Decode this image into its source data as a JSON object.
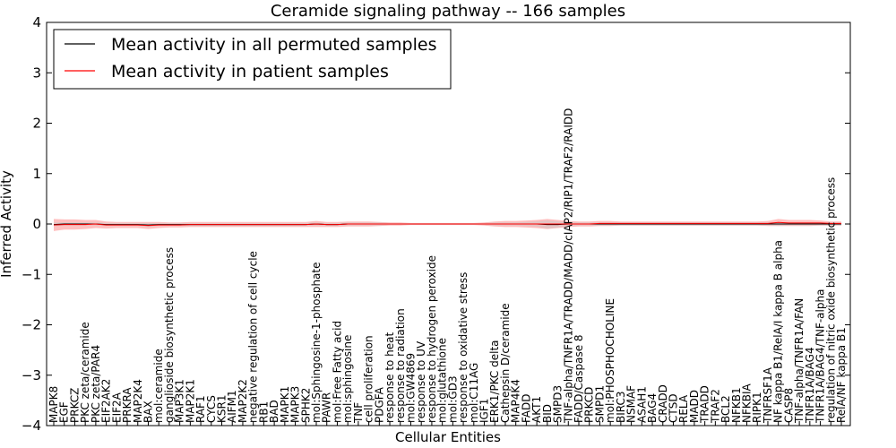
{
  "chart_data": {
    "type": "line",
    "title": "Ceramide signaling pathway -- 166 samples",
    "xlabel": "Cellular Entities",
    "ylabel": "Inferred Activity",
    "ylim": [
      -4,
      4
    ],
    "yticks": [
      -4,
      -3,
      -2,
      -1,
      0,
      1,
      2,
      3,
      4
    ],
    "ytick_labels": [
      "−4",
      "−3",
      "−2",
      "−1",
      "0",
      "1",
      "2",
      "3",
      "4"
    ],
    "grid": false,
    "legend_position": "top-left",
    "categories": [
      "MAPK8",
      "EGF",
      "PRKCZ",
      "PKC zeta/ceramide",
      "PKC zeta/PAR4",
      "EIF2AK2",
      "EIF2A",
      "PRKRA",
      "MAP2K4",
      "BAX",
      "mol:ceramide",
      "ganglioside biosynthetic process",
      "MAP3K1",
      "MAP2K1",
      "RAF1",
      "CYCS",
      "KSR1",
      "AIFM1",
      "MAP2K2",
      "negative regulation of cell cycle",
      "RB1",
      "BAD",
      "MAPK1",
      "MAPK3",
      "SPHK2",
      "mol:Sphingosine-1-phosphate",
      "PAWR",
      "mol:Free Fatty acid",
      "mol:sphingosine",
      "TNF",
      "cell proliferation",
      "PDGFA",
      "response to heat",
      "response to radiation",
      "mol:GW4869",
      "response to UV",
      "response to hydrogen peroxide",
      "mol:glutathione",
      "mol:GD3",
      "response to oxidative stress",
      "mol:C11AG",
      "IGF1",
      "ERK1/PKC delta",
      "Cathepsin D/ceramide",
      "MAP4K4",
      "FADD",
      "AKT1",
      "BID",
      "SMPD3",
      "TNF-alpha/TNFR1A/TRADD/MADD/cIAP2/RIP1/TRAF2/RAIDD",
      "FADD/Caspase 8",
      "PRKCD",
      "SMPD1",
      "mol:PHOSPHOCHOLINE",
      "BIRC3",
      "NSMAF",
      "ASAH1",
      "BAG4",
      "CRADD",
      "CTSD",
      "RELA",
      "MADD",
      "TRADD",
      "TRAF2",
      "BCL2",
      "NFKB1",
      "NFKBIA",
      "RIPK1",
      "TNFRSF1A",
      "NF kappa B1/RelA/I kappa B alpha",
      "CASP8",
      "TNF-alpha/TNFR1A/FAN",
      "TNFR1A/BAG4",
      "TNFR1A/BAG4/TNF-alpha",
      "regulation of nitric oxide biosynthetic process",
      "RelA/NF kappa B1"
    ],
    "series": [
      {
        "name": "Mean activity in all permuted samples",
        "color": "#000000",
        "values": [
          -0.01,
          0.0,
          0.0,
          0.0,
          0.0,
          -0.01,
          -0.01,
          -0.01,
          -0.01,
          -0.02,
          -0.01,
          -0.01,
          -0.01,
          -0.01,
          -0.01,
          -0.01,
          -0.01,
          -0.01,
          -0.01,
          -0.01,
          -0.01,
          -0.01,
          -0.01,
          -0.01,
          -0.01,
          0.0,
          -0.01,
          -0.01,
          0.0,
          0.0,
          0.0,
          0.0,
          0.0,
          0.0,
          0.0,
          0.0,
          0.0,
          0.0,
          0.0,
          0.0,
          0.0,
          0.0,
          0.0,
          0.0,
          0.0,
          0.0,
          0.0,
          -0.01,
          -0.01,
          0.0,
          0.0,
          0.0,
          0.0,
          0.0,
          0.0,
          0.0,
          0.0,
          0.0,
          0.0,
          0.0,
          0.0,
          0.0,
          0.0,
          0.0,
          0.0,
          0.0,
          0.0,
          0.0,
          0.0,
          0.0,
          0.0,
          0.0,
          0.0,
          0.0,
          0.0,
          0.0
        ],
        "spread": [
          0.04,
          0.03,
          0.03,
          0.03,
          0.03,
          0.03,
          0.03,
          0.03,
          0.03,
          0.04,
          0.03,
          0.03,
          0.03,
          0.03,
          0.03,
          0.03,
          0.03,
          0.03,
          0.03,
          0.03,
          0.03,
          0.03,
          0.03,
          0.03,
          0.03,
          0.03,
          0.03,
          0.03,
          0.03,
          0.03,
          0.03,
          0.03,
          0.02,
          0.02,
          0.02,
          0.02,
          0.02,
          0.02,
          0.02,
          0.02,
          0.02,
          0.02,
          0.03,
          0.03,
          0.03,
          0.04,
          0.05,
          0.08,
          0.06,
          0.04,
          0.03,
          0.03,
          0.03,
          0.03,
          0.03,
          0.03,
          0.03,
          0.03,
          0.03,
          0.03,
          0.03,
          0.03,
          0.03,
          0.03,
          0.03,
          0.03,
          0.03,
          0.03,
          0.03,
          0.04,
          0.03,
          0.03,
          0.03,
          0.03,
          0.03,
          0.03
        ]
      },
      {
        "name": "Mean activity in patient samples",
        "color": "#ff0000",
        "values": [
          -0.02,
          -0.01,
          -0.01,
          -0.01,
          0.0,
          -0.02,
          -0.02,
          -0.02,
          -0.02,
          -0.03,
          -0.02,
          -0.02,
          -0.02,
          -0.01,
          -0.01,
          -0.01,
          -0.01,
          -0.01,
          -0.01,
          -0.01,
          -0.01,
          -0.01,
          -0.01,
          -0.01,
          -0.01,
          0.0,
          -0.01,
          -0.01,
          0.0,
          0.0,
          0.0,
          0.0,
          0.0,
          0.0,
          0.0,
          0.0,
          0.0,
          0.0,
          0.0,
          0.0,
          0.0,
          0.0,
          0.0,
          0.0,
          0.0,
          0.0,
          0.0,
          0.0,
          0.0,
          0.0,
          0.0,
          0.0,
          0.01,
          0.01,
          0.01,
          0.01,
          0.01,
          0.01,
          0.01,
          0.01,
          0.01,
          0.01,
          0.01,
          0.01,
          0.01,
          0.01,
          0.01,
          0.01,
          0.01,
          0.03,
          0.02,
          0.02,
          0.02,
          0.02,
          0.01,
          0.01
        ],
        "spread": [
          0.12,
          0.1,
          0.1,
          0.09,
          0.08,
          0.07,
          0.06,
          0.06,
          0.06,
          0.07,
          0.06,
          0.05,
          0.05,
          0.05,
          0.05,
          0.05,
          0.05,
          0.05,
          0.05,
          0.05,
          0.05,
          0.05,
          0.05,
          0.05,
          0.05,
          0.06,
          0.05,
          0.05,
          0.05,
          0.05,
          0.05,
          0.04,
          0.03,
          0.03,
          0.02,
          0.02,
          0.02,
          0.02,
          0.02,
          0.02,
          0.02,
          0.03,
          0.05,
          0.06,
          0.06,
          0.07,
          0.08,
          0.1,
          0.08,
          0.06,
          0.05,
          0.05,
          0.05,
          0.05,
          0.04,
          0.04,
          0.04,
          0.04,
          0.04,
          0.04,
          0.04,
          0.04,
          0.04,
          0.04,
          0.04,
          0.04,
          0.04,
          0.04,
          0.05,
          0.07,
          0.06,
          0.06,
          0.06,
          0.05,
          0.04,
          0.04
        ]
      }
    ],
    "colors": {
      "patient_band": "#ff8a8a",
      "permuted_band": "#c8c8c8"
    }
  }
}
